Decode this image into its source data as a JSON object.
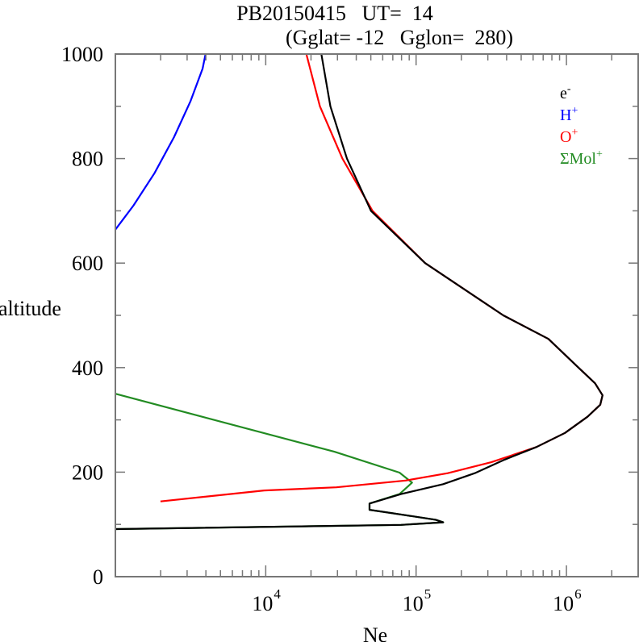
{
  "chart_data": {
    "type": "line",
    "title_line1": "PB20150415   UT=  14",
    "title_line2": "(Gglat= -12   Gglon=  280)",
    "xlabel": "Ne",
    "ylabel": "altitude",
    "xscale": "log",
    "xlim": [
      1000,
      3000000
    ],
    "ylim": [
      0,
      1000
    ],
    "yticks": [
      0,
      200,
      400,
      600,
      800,
      1000
    ],
    "yminor_step": 100,
    "xticks": [
      {
        "base": "10",
        "exp": "4",
        "value": 10000
      },
      {
        "base": "10",
        "exp": "5",
        "value": 100000
      },
      {
        "base": "10",
        "exp": "6",
        "value": 1000000
      }
    ],
    "legend_position": "top-right",
    "series": [
      {
        "name": "e-",
        "label": "e",
        "sup": "-",
        "color": "#000000",
        "points": [
          [
            3.0,
            91
          ],
          [
            4.9,
            99
          ],
          [
            5.18,
            104
          ],
          [
            5.13,
            109
          ],
          [
            4.9,
            119
          ],
          [
            4.69,
            128
          ],
          [
            4.69,
            140
          ],
          [
            4.9,
            158
          ],
          [
            5.18,
            177
          ],
          [
            5.39,
            198
          ],
          [
            5.59,
            224
          ],
          [
            5.8,
            248
          ],
          [
            5.99,
            275
          ],
          [
            6.14,
            306
          ],
          [
            6.225,
            329
          ],
          [
            6.24,
            347
          ],
          [
            6.19,
            370
          ],
          [
            6.08,
            400
          ],
          [
            5.88,
            455
          ],
          [
            5.58,
            500
          ],
          [
            5.06,
            600
          ],
          [
            4.7,
            700
          ],
          [
            4.54,
            800
          ],
          [
            4.43,
            900
          ],
          [
            4.37,
            1000
          ]
        ]
      },
      {
        "name": "H+",
        "label": "H",
        "sup": "+",
        "color": "#0000ff",
        "points": [
          [
            3.0,
            664
          ],
          [
            3.12,
            710
          ],
          [
            3.26,
            772
          ],
          [
            3.39,
            841
          ],
          [
            3.5,
            910
          ],
          [
            3.58,
            972
          ],
          [
            3.6,
            1000
          ]
        ]
      },
      {
        "name": "O+",
        "label": "O",
        "sup": "+",
        "color": "#ff0000",
        "points": [
          [
            3.3,
            144
          ],
          [
            3.99,
            165
          ],
          [
            4.47,
            171
          ],
          [
            4.93,
            184
          ],
          [
            5.21,
            198
          ],
          [
            5.5,
            219
          ],
          [
            5.8,
            248
          ],
          [
            5.99,
            275
          ],
          [
            6.14,
            306
          ],
          [
            6.225,
            329
          ],
          [
            6.24,
            347
          ],
          [
            6.19,
            370
          ],
          [
            6.08,
            400
          ],
          [
            5.88,
            455
          ],
          [
            5.58,
            500
          ],
          [
            5.06,
            600
          ],
          [
            4.71,
            700
          ],
          [
            4.51,
            800
          ],
          [
            4.36,
            900
          ],
          [
            4.27,
            1000
          ]
        ]
      },
      {
        "name": "SumMol+",
        "label": "ΣMol",
        "sup": "+",
        "color": "#228b22",
        "points": [
          [
            3.0,
            91
          ],
          [
            4.9,
            99
          ],
          [
            5.18,
            104
          ],
          [
            5.13,
            109
          ],
          [
            4.9,
            119
          ],
          [
            4.69,
            128
          ],
          [
            4.69,
            140
          ],
          [
            4.89,
            158
          ],
          [
            4.973,
            180
          ],
          [
            4.89,
            199
          ],
          [
            4.457,
            239
          ],
          [
            3.0,
            350
          ]
        ]
      }
    ]
  }
}
